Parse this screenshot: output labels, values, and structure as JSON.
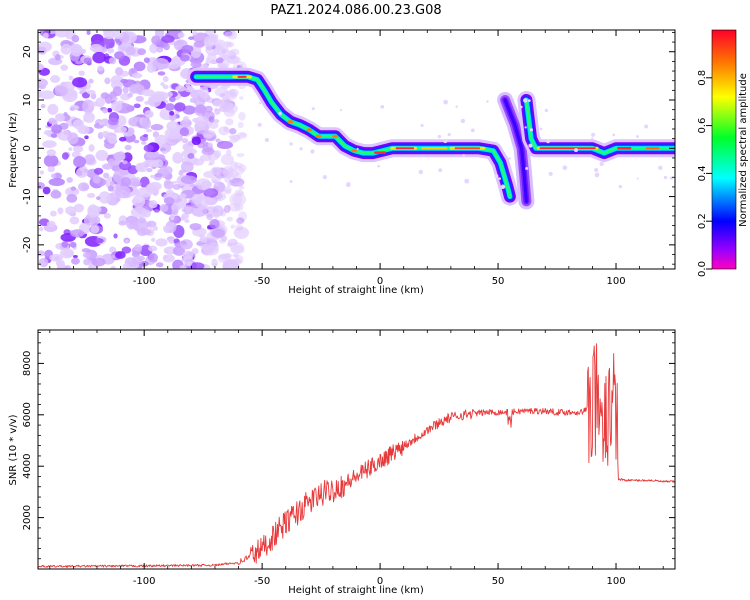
{
  "title": "PAZ1.2024.086.00.23.G08",
  "chart_data": [
    {
      "type": "heatmap",
      "xlabel": "Height of straight line (km)",
      "ylabel": "Frequency (Hz)",
      "xlim": [
        -145,
        125
      ],
      "ylim": [
        -25,
        24.5
      ],
      "xticks": [
        -100,
        -50,
        0,
        50,
        100
      ],
      "yticks": [
        -20,
        -10,
        0,
        10,
        20
      ],
      "colorbar": {
        "label": "Normalized spectral amplitude",
        "range": [
          0,
          1
        ],
        "ticks": [
          0.0,
          0.2,
          0.4,
          0.6,
          0.8
        ],
        "colormap": "gist_rainbow_r"
      },
      "features": {
        "noise_region_x": [
          -145,
          -58
        ],
        "main_trace": [
          [
            -78,
            14.8
          ],
          [
            -62,
            14.8
          ],
          [
            -56,
            14.8
          ],
          [
            -52,
            14.2
          ],
          [
            -49,
            12
          ],
          [
            -46,
            9.5
          ],
          [
            -42,
            7
          ],
          [
            -38,
            5.5
          ],
          [
            -34,
            4.8
          ],
          [
            -30,
            3.8
          ],
          [
            -26,
            2.5
          ],
          [
            -22,
            2.5
          ],
          [
            -19,
            2.5
          ],
          [
            -15,
            0.5
          ],
          [
            -11,
            -0.5
          ],
          [
            -7,
            -1
          ],
          [
            -3,
            -1
          ],
          [
            5,
            0
          ],
          [
            15,
            0
          ],
          [
            30,
            0
          ],
          [
            42,
            0
          ],
          [
            48,
            -0.5
          ],
          [
            51,
            -3
          ],
          [
            54,
            -8
          ],
          [
            55,
            -10
          ]
        ],
        "second_segment": [
          [
            53,
            10
          ],
          [
            57,
            5
          ],
          [
            60,
            0
          ],
          [
            61,
            -5
          ],
          [
            62,
            -11
          ]
        ],
        "third_segment": [
          [
            62,
            10
          ],
          [
            64,
            2
          ],
          [
            66,
            0
          ],
          [
            75,
            0
          ],
          [
            90,
            0
          ],
          [
            95,
            -1
          ],
          [
            100,
            0
          ],
          [
            125,
            0
          ]
        ]
      }
    },
    {
      "type": "line",
      "xlabel": "Height of straight line (km)",
      "ylabel": "SNR (10 * v/v)",
      "xlim": [
        -145,
        125
      ],
      "ylim": [
        0,
        9300
      ],
      "xticks": [
        -100,
        -50,
        0,
        50,
        100
      ],
      "yticks": [
        2000,
        4000,
        6000,
        8000
      ],
      "series": [
        {
          "color": "#e8393a",
          "points": [
            [
              -145,
              100
            ],
            [
              -100,
              120
            ],
            [
              -70,
              150
            ],
            [
              -60,
              250
            ],
            [
              -55,
              500
            ],
            [
              -50,
              800
            ],
            [
              -45,
              1300
            ],
            [
              -40,
              1800
            ],
            [
              -35,
              2200
            ],
            [
              -30,
              2600
            ],
            [
              -25,
              2900
            ],
            [
              -20,
              3100
            ],
            [
              -15,
              3300
            ],
            [
              -10,
              3600
            ],
            [
              -5,
              3900
            ],
            [
              0,
              4200
            ],
            [
              5,
              4500
            ],
            [
              10,
              4800
            ],
            [
              15,
              5100
            ],
            [
              20,
              5400
            ],
            [
              25,
              5700
            ],
            [
              30,
              5900
            ],
            [
              35,
              6000
            ],
            [
              40,
              6050
            ],
            [
              45,
              6100
            ],
            [
              50,
              6100
            ],
            [
              55,
              6100
            ],
            [
              60,
              6150
            ],
            [
              65,
              6150
            ],
            [
              70,
              6150
            ],
            [
              75,
              6100
            ],
            [
              80,
              6100
            ],
            [
              85,
              6100
            ],
            [
              90,
              6300
            ],
            [
              93,
              6500
            ],
            [
              96,
              6200
            ],
            [
              100,
              6200
            ],
            [
              101,
              3500
            ],
            [
              105,
              3450
            ],
            [
              110,
              3450
            ],
            [
              115,
              3450
            ],
            [
              120,
              3400
            ],
            [
              125,
              3400
            ]
          ]
        }
      ]
    }
  ]
}
